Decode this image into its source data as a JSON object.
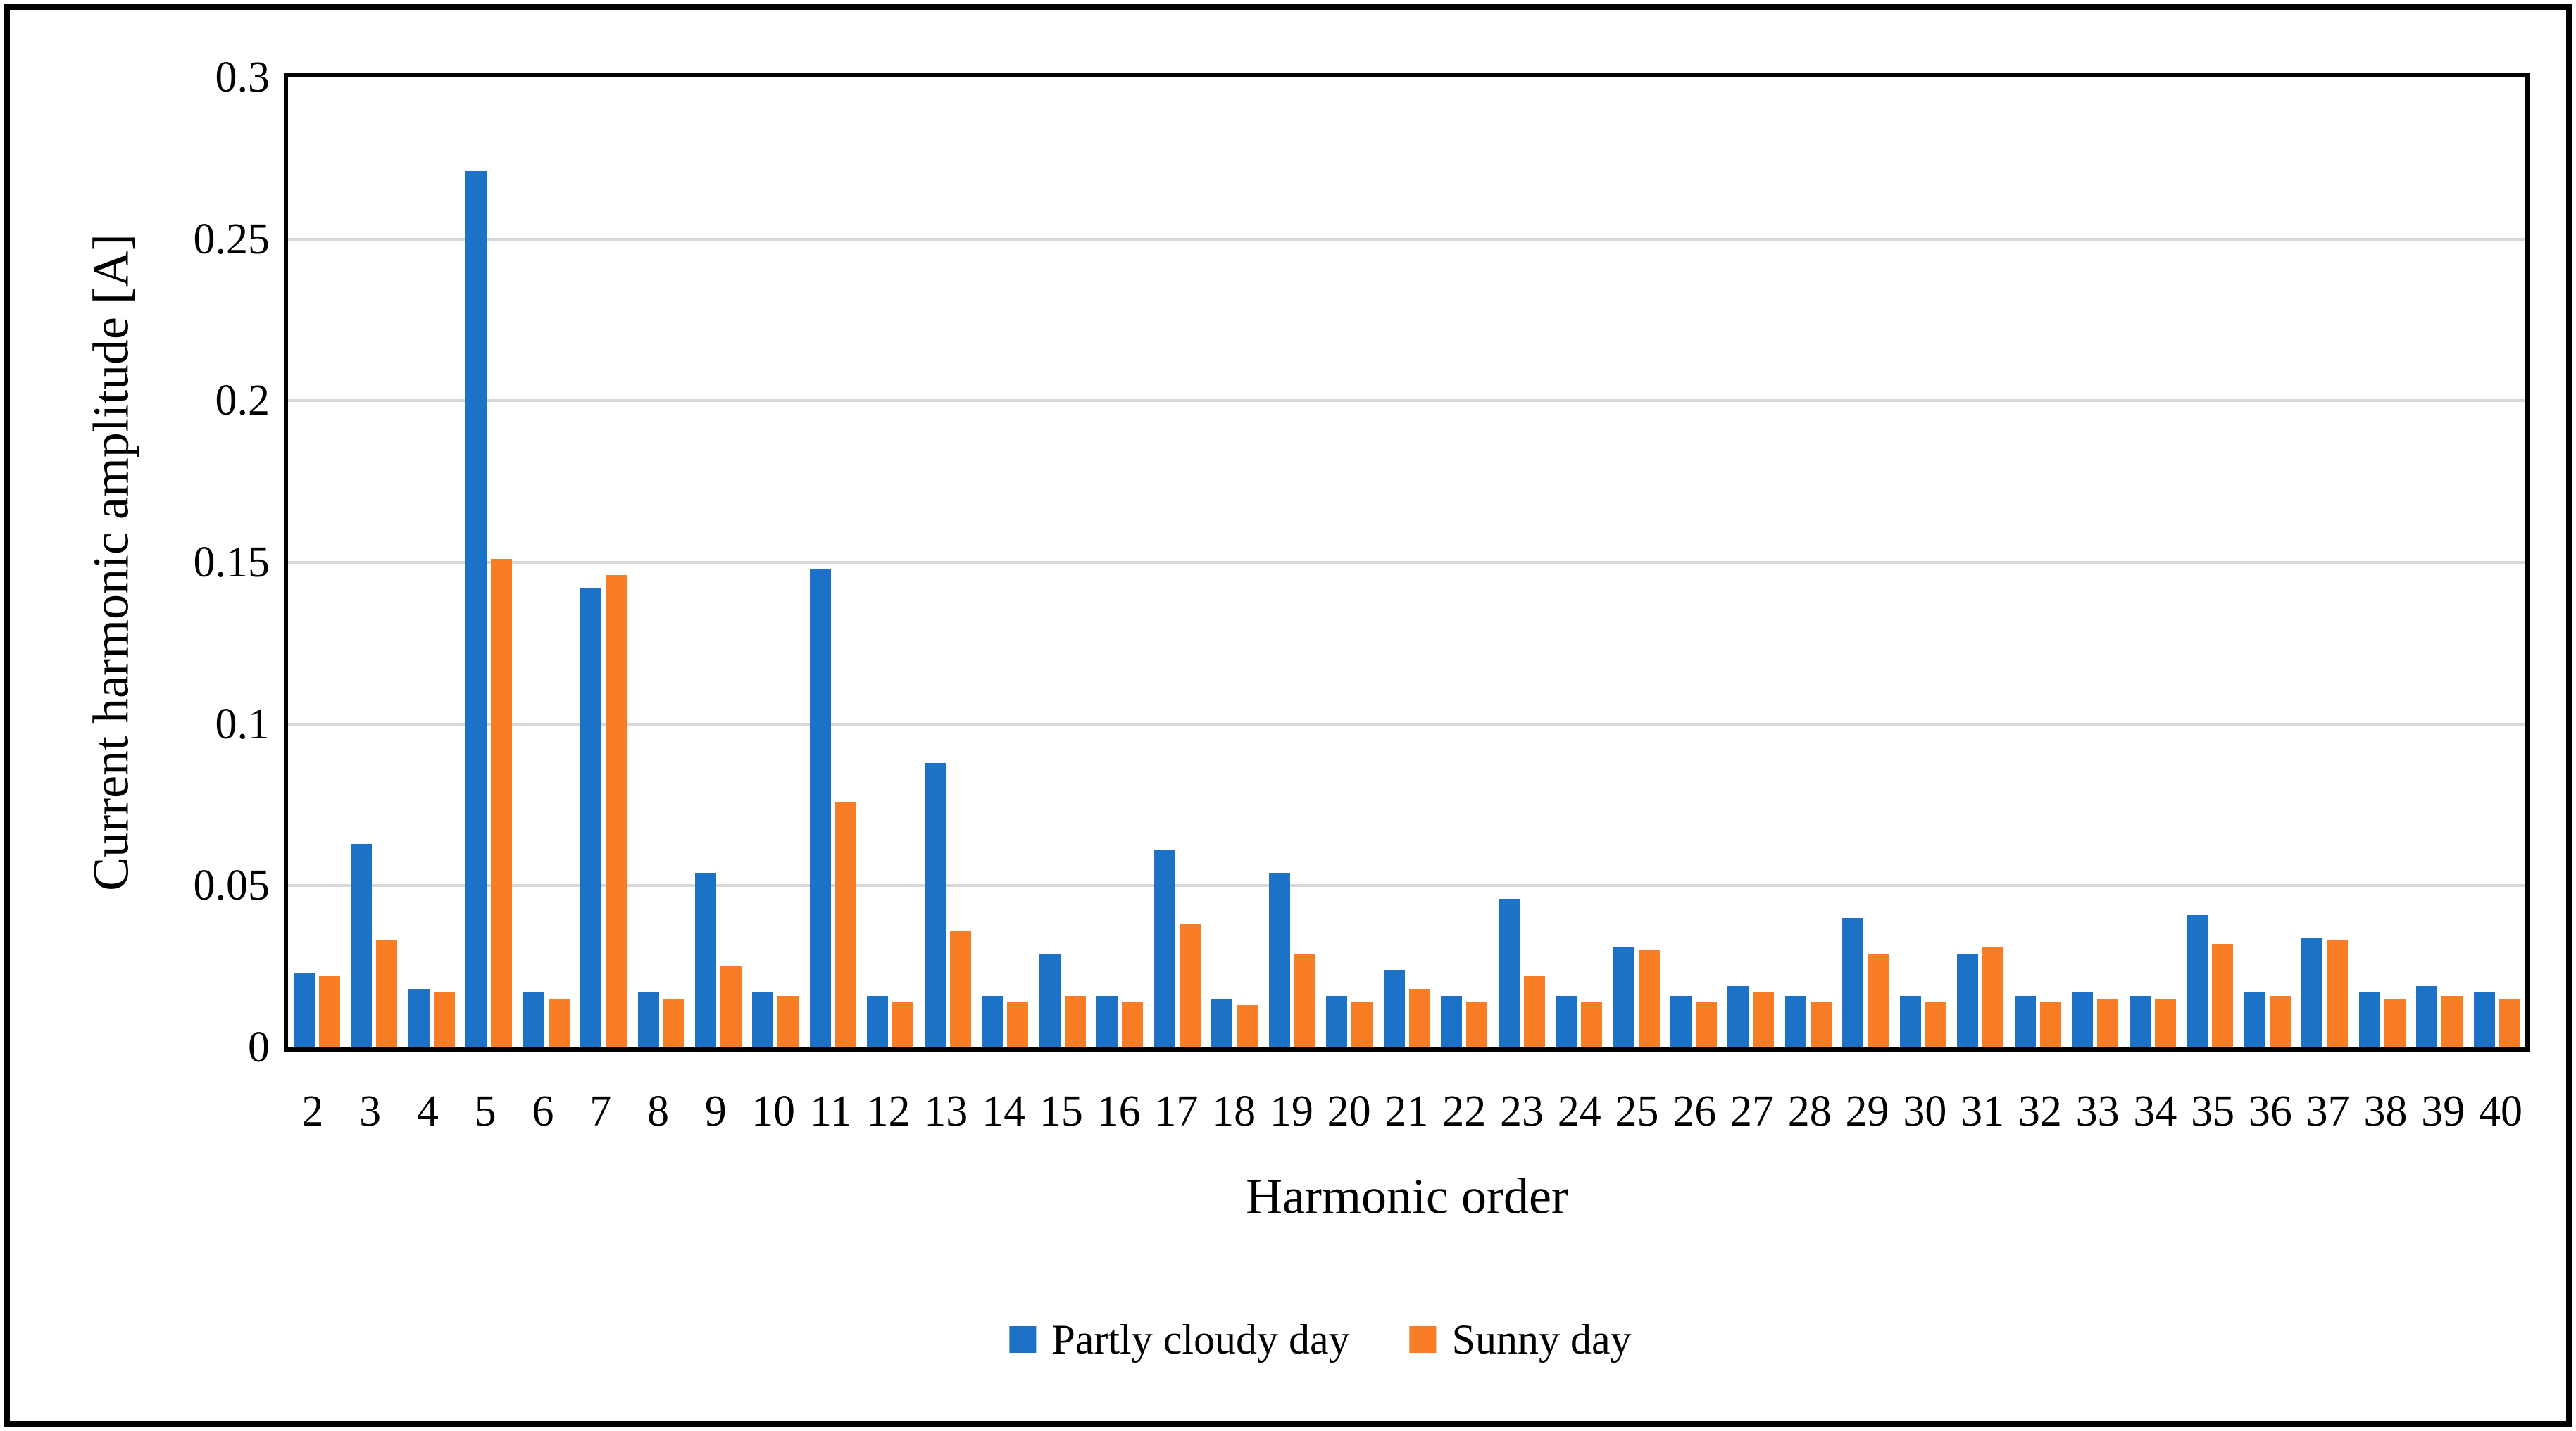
{
  "figure": {
    "background": "#ffffff",
    "border_color": "#000000",
    "axis_frame_color": "#000000",
    "gridline_color": "#D8D8D8"
  },
  "chart_data": {
    "type": "bar",
    "title": "",
    "xlabel": "Harmonic order",
    "ylabel": "Current harmonic amplitude [A]",
    "ylim": [
      0,
      0.3
    ],
    "grid": "horizontal-major-0.05",
    "legend_position": "bottom-center",
    "yticks": [
      {
        "label": "0",
        "value": 0
      },
      {
        "label": "0.05",
        "value": 0.05
      },
      {
        "label": "0.1",
        "value": 0.1
      },
      {
        "label": "0.15",
        "value": 0.15
      },
      {
        "label": "0.2",
        "value": 0.2
      },
      {
        "label": "0.25",
        "value": 0.25
      },
      {
        "label": "0.3",
        "value": 0.3
      }
    ],
    "categories": [
      2,
      3,
      4,
      5,
      6,
      7,
      8,
      9,
      10,
      11,
      12,
      13,
      14,
      15,
      16,
      17,
      18,
      19,
      20,
      21,
      22,
      23,
      24,
      25,
      26,
      27,
      28,
      29,
      30,
      31,
      32,
      33,
      34,
      35,
      36,
      37,
      38,
      39,
      40
    ],
    "series": [
      {
        "name": "Partly cloudy day",
        "color": "#1B72C6",
        "values": [
          0.023,
          0.063,
          0.018,
          0.271,
          0.017,
          0.142,
          0.017,
          0.054,
          0.017,
          0.148,
          0.016,
          0.088,
          0.016,
          0.029,
          0.016,
          0.061,
          0.015,
          0.054,
          0.016,
          0.024,
          0.016,
          0.046,
          0.016,
          0.031,
          0.016,
          0.019,
          0.016,
          0.04,
          0.016,
          0.029,
          0.016,
          0.017,
          0.016,
          0.041,
          0.017,
          0.034,
          0.017,
          0.019,
          0.017
        ]
      },
      {
        "name": "Sunny day",
        "color": "#F97D24",
        "values": [
          0.022,
          0.033,
          0.017,
          0.151,
          0.015,
          0.146,
          0.015,
          0.025,
          0.016,
          0.076,
          0.014,
          0.036,
          0.014,
          0.016,
          0.014,
          0.038,
          0.013,
          0.029,
          0.014,
          0.018,
          0.014,
          0.022,
          0.014,
          0.03,
          0.014,
          0.017,
          0.014,
          0.029,
          0.014,
          0.031,
          0.014,
          0.015,
          0.015,
          0.032,
          0.016,
          0.033,
          0.015,
          0.016,
          0.015
        ]
      }
    ]
  }
}
